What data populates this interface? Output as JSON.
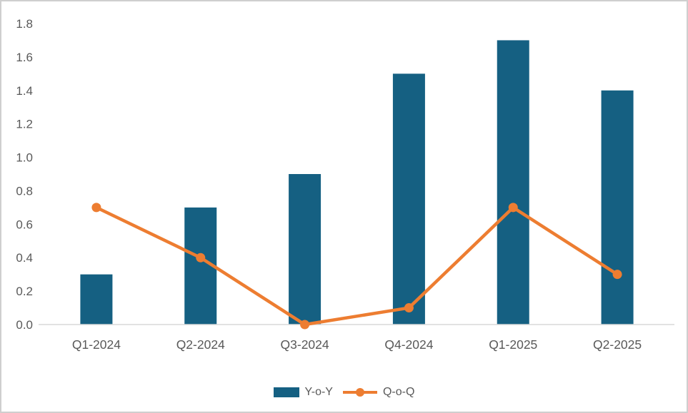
{
  "chart_data": {
    "type": "combo",
    "title": "",
    "xlabel": "",
    "ylabel": "",
    "categories": [
      "Q1-2024",
      "Q2-2024",
      "Q3-2024",
      "Q4-2024",
      "Q1-2025",
      "Q2-2025"
    ],
    "series": [
      {
        "name": "Y-o-Y",
        "type": "bar",
        "color": "#156082",
        "values": [
          0.3,
          0.7,
          0.9,
          1.5,
          1.7,
          1.4
        ]
      },
      {
        "name": "Q-o-Q",
        "type": "line",
        "color": "#ED7D31",
        "values": [
          0.7,
          0.4,
          0.0,
          0.1,
          0.7,
          0.3
        ]
      }
    ],
    "ylim": [
      0,
      1.8
    ],
    "ytick_step": 0.2,
    "ytick_labels": [
      "0.0",
      "0.2",
      "0.4",
      "0.6",
      "0.8",
      "1.0",
      "1.2",
      "1.4",
      "1.6",
      "1.8"
    ],
    "grid": false,
    "legend_position": "bottom",
    "axis_text_color": "#595959",
    "axis_line_color": "#d9d9d9"
  }
}
